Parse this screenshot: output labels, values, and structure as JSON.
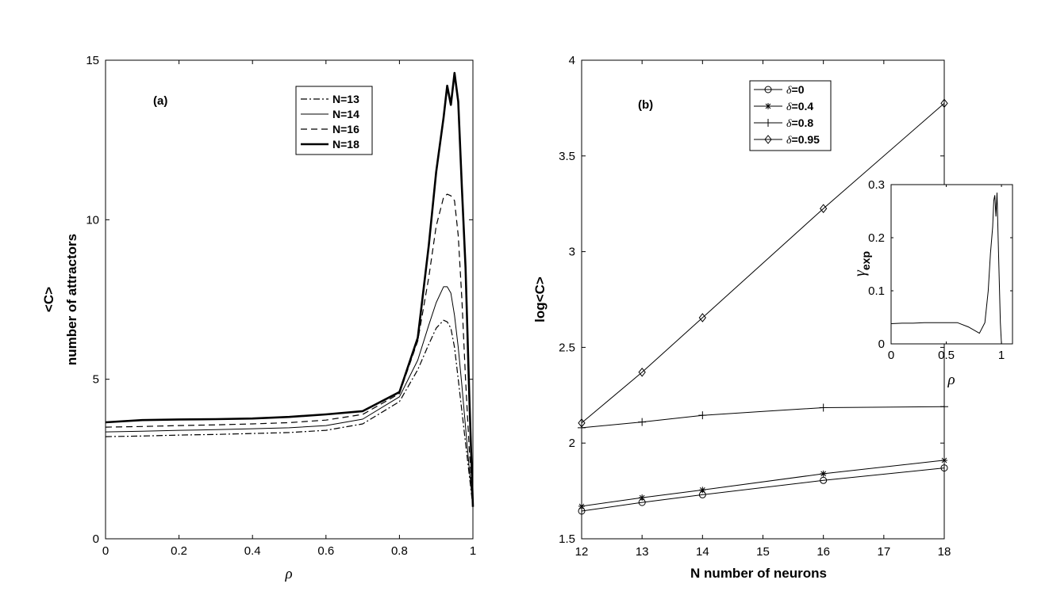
{
  "chart_data": [
    {
      "type": "line",
      "panel_label": "(a)",
      "xlabel": "ρ",
      "ylabel_lines": [
        "<C>",
        "number of attractors"
      ],
      "xlim": [
        0,
        1
      ],
      "ylim": [
        0,
        15
      ],
      "xticks": [
        0,
        0.2,
        0.4,
        0.6,
        0.8,
        1
      ],
      "xtick_labels": [
        "0",
        "0.2",
        "0.4",
        "0.6",
        "0.8",
        "1"
      ],
      "yticks": [
        0,
        5,
        10,
        15
      ],
      "ytick_labels": [
        "0",
        "5",
        "10",
        "15"
      ],
      "legend_position": "top-right",
      "x": [
        0,
        0.1,
        0.2,
        0.3,
        0.4,
        0.5,
        0.6,
        0.7,
        0.8,
        0.85,
        0.88,
        0.9,
        0.92,
        0.93,
        0.94,
        0.95,
        0.96,
        0.97,
        0.98,
        0.99,
        1
      ],
      "series": [
        {
          "name": "N=13",
          "style": "dash-dot",
          "width": 1.2,
          "values": [
            3.2,
            3.22,
            3.25,
            3.27,
            3.3,
            3.33,
            3.4,
            3.6,
            4.3,
            5.3,
            6.1,
            6.6,
            6.85,
            6.8,
            6.6,
            6.0,
            5.0,
            4.0,
            3.0,
            2.0,
            1.0
          ]
        },
        {
          "name": "N=14",
          "style": "solid",
          "width": 1.0,
          "values": [
            3.35,
            3.37,
            3.4,
            3.42,
            3.45,
            3.48,
            3.55,
            3.75,
            4.45,
            5.6,
            6.7,
            7.4,
            7.9,
            7.9,
            7.7,
            7.0,
            6.0,
            4.8,
            3.5,
            2.2,
            1.0
          ]
        },
        {
          "name": "N=16",
          "style": "dashed",
          "width": 1.2,
          "values": [
            3.5,
            3.52,
            3.55,
            3.57,
            3.6,
            3.64,
            3.72,
            3.9,
            4.55,
            6.2,
            8.2,
            9.8,
            10.7,
            10.8,
            10.75,
            10.6,
            9.5,
            7.5,
            5.0,
            2.8,
            1.0
          ]
        },
        {
          "name": "N=18",
          "style": "solid",
          "width": 2.6,
          "values": [
            3.65,
            3.72,
            3.74,
            3.75,
            3.77,
            3.82,
            3.9,
            4.0,
            4.6,
            6.3,
            9.2,
            11.5,
            13.2,
            14.2,
            13.6,
            14.6,
            13.7,
            11.0,
            8.5,
            4.5,
            1.0
          ]
        }
      ]
    },
    {
      "type": "line",
      "panel_label": "(b)",
      "xlabel": "N number of neurons",
      "ylabel": "log<C>",
      "xlim": [
        12,
        18
      ],
      "ylim": [
        1.5,
        4
      ],
      "xticks": [
        12,
        13,
        14,
        15,
        16,
        17,
        18
      ],
      "xtick_labels": [
        "12",
        "13",
        "14",
        "15",
        "16",
        "17",
        "18"
      ],
      "yticks": [
        1.5,
        2,
        2.5,
        3,
        3.5,
        4
      ],
      "ytick_labels": [
        "1.5",
        "2",
        "2.5",
        "3",
        "3.5",
        "4"
      ],
      "legend_position": "top-left",
      "x": [
        12,
        13,
        14,
        16,
        18
      ],
      "series": [
        {
          "name": "δ=0",
          "symbol": "δ",
          "value_text": "=0",
          "marker": "circle",
          "values": [
            1.645,
            1.69,
            1.73,
            1.805,
            1.87
          ]
        },
        {
          "name": "δ=0.4",
          "symbol": "δ",
          "value_text": "=0.4",
          "marker": "star",
          "values": [
            1.67,
            1.715,
            1.755,
            1.84,
            1.91
          ]
        },
        {
          "name": "δ=0.8",
          "symbol": "δ",
          "value_text": "=0.8",
          "marker": "plus",
          "values": [
            2.08,
            2.11,
            2.145,
            2.185,
            2.19
          ]
        },
        {
          "name": "δ=0.95",
          "symbol": "δ",
          "value_text": "=0.95",
          "marker": "diamond",
          "values": [
            2.105,
            2.37,
            2.655,
            3.225,
            3.775
          ]
        }
      ]
    },
    {
      "type": "line",
      "inset_of": "(b)",
      "xlabel": "ρ",
      "ylabel_symbol": "γ",
      "ylabel_subscript": "exp",
      "xlim": [
        0,
        1.1
      ],
      "ylim": [
        0,
        0.3
      ],
      "xticks": [
        0,
        0.5,
        1
      ],
      "xtick_labels": [
        "0",
        "0.5",
        "1"
      ],
      "yticks": [
        0,
        0.1,
        0.2,
        0.3
      ],
      "ytick_labels": [
        "0",
        "0.1",
        "0.2",
        "0.3"
      ],
      "x": [
        0,
        0.1,
        0.2,
        0.3,
        0.4,
        0.5,
        0.6,
        0.7,
        0.8,
        0.85,
        0.88,
        0.9,
        0.92,
        0.93,
        0.94,
        0.95,
        0.96,
        0.97,
        0.98,
        0.99,
        1.0
      ],
      "values": [
        0.038,
        0.039,
        0.039,
        0.04,
        0.04,
        0.04,
        0.04,
        0.032,
        0.02,
        0.04,
        0.1,
        0.17,
        0.22,
        0.27,
        0.28,
        0.24,
        0.285,
        0.2,
        0.12,
        0.04,
        0.0
      ]
    }
  ]
}
